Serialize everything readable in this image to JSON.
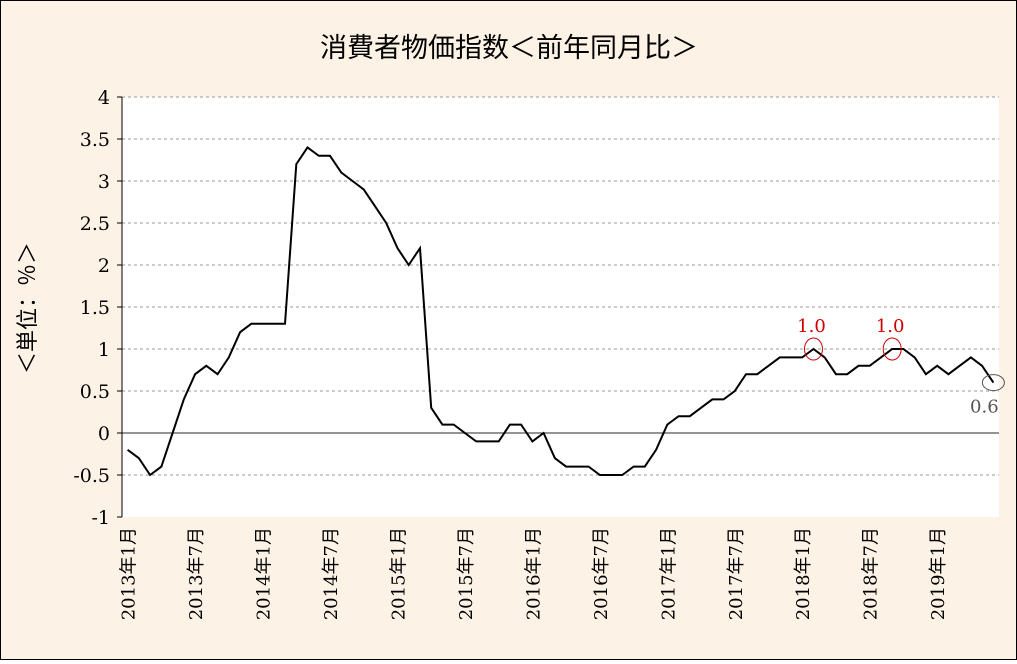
{
  "chart_data": {
    "type": "line",
    "title": "消費者物価指数＜前年同月比＞",
    "ylabel": "＜単位：％＞",
    "xlabel": "",
    "ylim": [
      -1,
      4
    ],
    "yticks": [
      "4",
      "3.5",
      "3",
      "2.5",
      "2",
      "1.5",
      "1",
      "0.5",
      "0",
      "-0.5",
      "-1"
    ],
    "ytick_values": [
      4,
      3.5,
      3,
      2.5,
      2,
      1.5,
      1,
      0.5,
      0,
      -0.5,
      -1
    ],
    "x_tick_labels": [
      "2013年1月",
      "2013年7月",
      "2014年1月",
      "2014年7月",
      "2015年1月",
      "2015年7月",
      "2016年1月",
      "2016年7月",
      "2017年1月",
      "2017年7月",
      "2018年1月",
      "2018年7月",
      "2019年1月"
    ],
    "x_tick_index": [
      0,
      6,
      12,
      18,
      24,
      30,
      36,
      42,
      48,
      54,
      60,
      66,
      72
    ],
    "grid": true,
    "legend": "none",
    "series": [
      {
        "color": "#000000",
        "values": [
          -0.2,
          -0.3,
          -0.5,
          -0.4,
          0,
          0.4,
          0.7,
          0.8,
          0.7,
          0.9,
          1.2,
          1.3,
          1.3,
          1.3,
          1.3,
          3.2,
          3.4,
          3.3,
          3.3,
          3.1,
          3.0,
          2.9,
          2.7,
          2.5,
          2.2,
          2.0,
          2.2,
          0.3,
          0.1,
          0.1,
          0,
          -0.1,
          -0.1,
          -0.1,
          0.1,
          0.1,
          -0.1,
          0,
          -0.3,
          -0.4,
          -0.4,
          -0.4,
          -0.5,
          -0.5,
          -0.5,
          -0.4,
          -0.4,
          -0.2,
          0.1,
          0.2,
          0.2,
          0.3,
          0.4,
          0.4,
          0.5,
          0.7,
          0.7,
          0.8,
          0.9,
          0.9,
          0.9,
          1.0,
          0.9,
          0.7,
          0.7,
          0.8,
          0.8,
          0.9,
          1.0,
          1.0,
          0.9,
          0.7,
          0.8,
          0.7,
          0.8,
          0.9,
          0.8,
          0.6
        ]
      }
    ],
    "annotations": [
      {
        "index": 61,
        "value": 1.0,
        "text": "1.0",
        "color": "#cc0000",
        "circle_color": "#cc0000"
      },
      {
        "index": 68,
        "value": 1.0,
        "text": "1.0",
        "color": "#cc0000",
        "circle_color": "#cc0000"
      },
      {
        "index": 77,
        "value": 0.6,
        "text": "0.6",
        "color": "#555555",
        "circle_color": "#555555"
      }
    ]
  }
}
